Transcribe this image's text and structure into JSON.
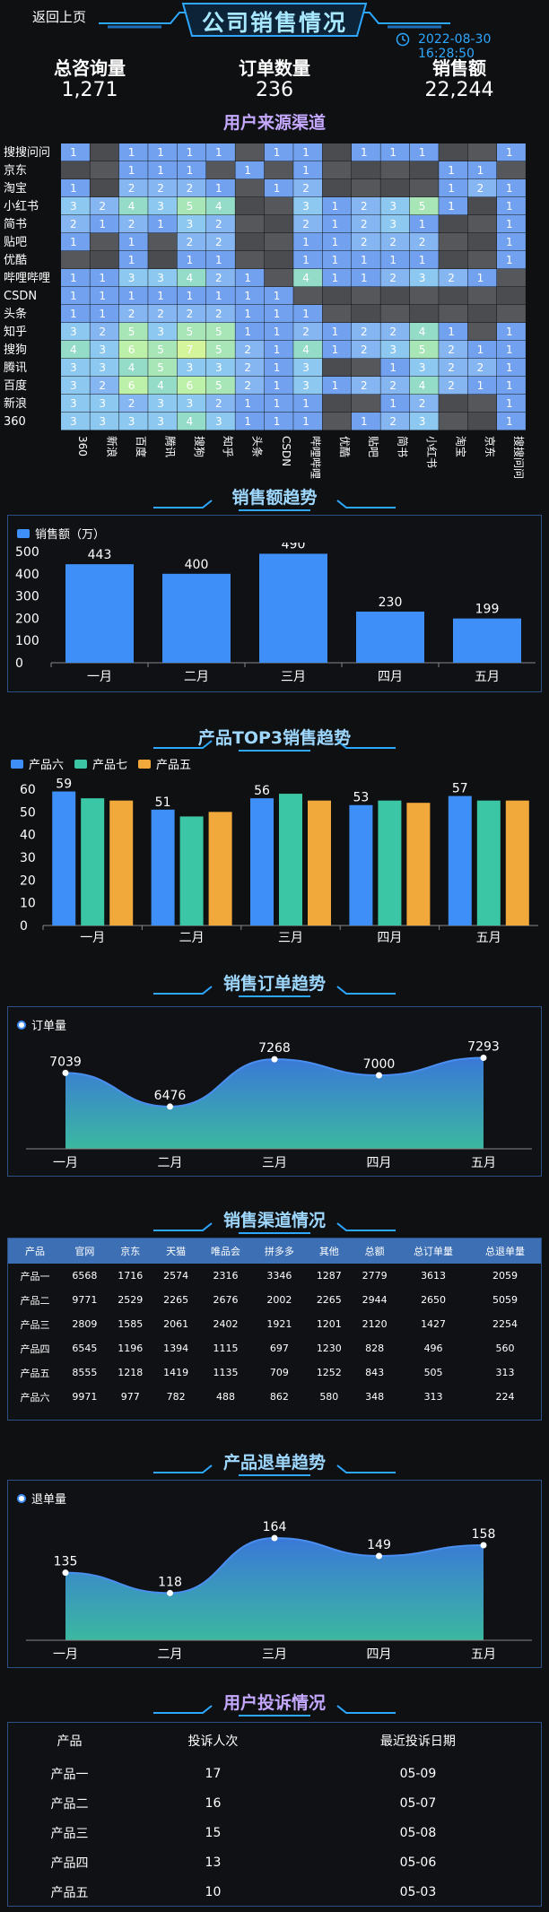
{
  "header": {
    "back_label": "返回上页",
    "title": "公司销售情况",
    "datetime": "2022-08-30 16:28:50"
  },
  "kpis": [
    {
      "label": "总咨询量",
      "value": "1,271"
    },
    {
      "label": "订单数量",
      "value": "236"
    },
    {
      "label": "销售额",
      "value": "22,244"
    }
  ],
  "colors": {
    "accent": "#2ea8ff",
    "bar_blue": "#3f8ff8",
    "bar_teal": "#3bc7a6",
    "bar_orange": "#f2a93b",
    "panel_border": "#2c4f86",
    "purple_title": "#c5a8ff"
  },
  "heatmap": {
    "title": "用户来源渠道",
    "rows": [
      "搜搜问问",
      "京东",
      "淘宝",
      "小红书",
      "简书",
      "贴吧",
      "优酷",
      "哔哩哔哩",
      "CSDN",
      "头条",
      "知乎",
      "搜狗",
      "腾讯",
      "百度",
      "新浪",
      "360"
    ],
    "cols": [
      "360",
      "新浪",
      "百度",
      "腾讯",
      "搜狗",
      "知乎",
      "头条",
      "CSDN",
      "哔哩哔哩",
      "优酷",
      "贴吧",
      "简书",
      "小红书",
      "淘宝",
      "京东",
      "搜搜问问"
    ],
    "values": [
      [
        1,
        null,
        1,
        1,
        1,
        1,
        null,
        1,
        1,
        null,
        1,
        1,
        1,
        null,
        null,
        1
      ],
      [
        null,
        null,
        1,
        1,
        1,
        null,
        1,
        null,
        1,
        null,
        null,
        null,
        null,
        1,
        1,
        null
      ],
      [
        1,
        null,
        2,
        2,
        2,
        1,
        null,
        1,
        2,
        null,
        null,
        null,
        null,
        1,
        2,
        1
      ],
      [
        3,
        2,
        4,
        3,
        5,
        4,
        null,
        null,
        3,
        1,
        2,
        3,
        5,
        1,
        null,
        1
      ],
      [
        2,
        1,
        2,
        1,
        3,
        2,
        null,
        null,
        2,
        1,
        2,
        3,
        1,
        null,
        null,
        1
      ],
      [
        1,
        null,
        1,
        null,
        2,
        2,
        null,
        null,
        1,
        1,
        2,
        2,
        2,
        null,
        null,
        1
      ],
      [
        null,
        null,
        1,
        null,
        1,
        1,
        null,
        null,
        1,
        1,
        1,
        1,
        1,
        null,
        null,
        1
      ],
      [
        1,
        1,
        3,
        3,
        4,
        2,
        1,
        null,
        4,
        1,
        1,
        2,
        3,
        2,
        1,
        null
      ],
      [
        1,
        1,
        1,
        1,
        1,
        1,
        1,
        1,
        null,
        null,
        null,
        null,
        null,
        null,
        null,
        null
      ],
      [
        1,
        1,
        2,
        2,
        2,
        2,
        1,
        1,
        1,
        null,
        null,
        null,
        null,
        null,
        null,
        null
      ],
      [
        3,
        2,
        5,
        3,
        5,
        5,
        1,
        1,
        2,
        1,
        2,
        2,
        4,
        1,
        null,
        1
      ],
      [
        4,
        3,
        6,
        5,
        7,
        5,
        2,
        1,
        4,
        1,
        2,
        3,
        5,
        2,
        1,
        1
      ],
      [
        3,
        3,
        4,
        5,
        3,
        3,
        2,
        1,
        3,
        null,
        null,
        1,
        3,
        2,
        2,
        1
      ],
      [
        3,
        2,
        6,
        4,
        6,
        5,
        2,
        1,
        3,
        1,
        2,
        2,
        4,
        2,
        1,
        1
      ],
      [
        3,
        3,
        2,
        3,
        3,
        2,
        1,
        1,
        1,
        null,
        null,
        1,
        2,
        null,
        null,
        1
      ],
      [
        3,
        3,
        3,
        3,
        4,
        3,
        1,
        1,
        1,
        null,
        1,
        2,
        3,
        null,
        null,
        1
      ]
    ]
  },
  "chart_data": [
    {
      "type": "bar",
      "title": "销售额趋势",
      "categories": [
        "一月",
        "二月",
        "三月",
        "四月",
        "五月"
      ],
      "series": [
        {
          "name": "销售额（万）",
          "values": [
            443,
            400,
            490,
            230,
            199
          ]
        }
      ],
      "yticks": [
        0,
        100,
        200,
        300,
        400,
        500
      ],
      "ylim": [
        0,
        500
      ],
      "legend": "top-left"
    },
    {
      "type": "bar",
      "title": "产品TOP3销售趋势",
      "categories": [
        "一月",
        "二月",
        "三月",
        "四月",
        "五月"
      ],
      "series": [
        {
          "name": "产品六",
          "values": [
            59,
            51,
            56,
            53,
            57
          ]
        },
        {
          "name": "产品七",
          "values": [
            56,
            48,
            58,
            55,
            55
          ]
        },
        {
          "name": "产品五",
          "values": [
            55,
            50,
            55,
            54,
            55
          ]
        }
      ],
      "yticks": [
        0,
        10,
        20,
        30,
        40,
        50,
        60
      ],
      "ylim": [
        0,
        60
      ],
      "legend": "top-left"
    },
    {
      "type": "area",
      "title": "销售订单趋势",
      "categories": [
        "一月",
        "二月",
        "三月",
        "四月",
        "五月"
      ],
      "series": [
        {
          "name": "订单量",
          "values": [
            7039,
            6476,
            7268,
            7000,
            7293
          ]
        }
      ],
      "legend": "top-left"
    },
    {
      "type": "area",
      "title": "产品退单趋势",
      "categories": [
        "一月",
        "二月",
        "三月",
        "四月",
        "五月"
      ],
      "series": [
        {
          "name": "退单量",
          "values": [
            135,
            118,
            164,
            149,
            158
          ]
        }
      ],
      "legend": "top-left"
    }
  ],
  "channel_table": {
    "title": "销售渠道情况",
    "headers": [
      "产品",
      "官网",
      "京东",
      "天猫",
      "唯品会",
      "拼多多",
      "其他",
      "总额",
      "总订单量",
      "总退单量"
    ],
    "rows": [
      [
        "产品一",
        "6568",
        "1716",
        "2574",
        "2316",
        "3346",
        "1287",
        "2779",
        "3613",
        "2059"
      ],
      [
        "产品二",
        "9771",
        "2529",
        "2265",
        "2676",
        "2002",
        "2265",
        "2944",
        "2650",
        "5059"
      ],
      [
        "产品三",
        "2809",
        "1585",
        "2061",
        "2402",
        "1921",
        "1201",
        "2120",
        "1427",
        "2254"
      ],
      [
        "产品四",
        "6545",
        "1196",
        "1394",
        "1115",
        "697",
        "1230",
        "828",
        "496",
        "560"
      ],
      [
        "产品五",
        "8555",
        "1218",
        "1419",
        "1135",
        "709",
        "1252",
        "843",
        "505",
        "313"
      ],
      [
        "产品六",
        "9971",
        "977",
        "782",
        "488",
        "862",
        "580",
        "348",
        "313",
        "224"
      ]
    ]
  },
  "complaint_table": {
    "title": "用户投诉情况",
    "headers": [
      "产品",
      "投诉人次",
      "最近投诉日期"
    ],
    "rows": [
      [
        "产品一",
        "17",
        "05-09"
      ],
      [
        "产品二",
        "16",
        "05-07"
      ],
      [
        "产品三",
        "15",
        "05-08"
      ],
      [
        "产品四",
        "13",
        "05-06"
      ],
      [
        "产品五",
        "10",
        "05-03"
      ]
    ]
  }
}
